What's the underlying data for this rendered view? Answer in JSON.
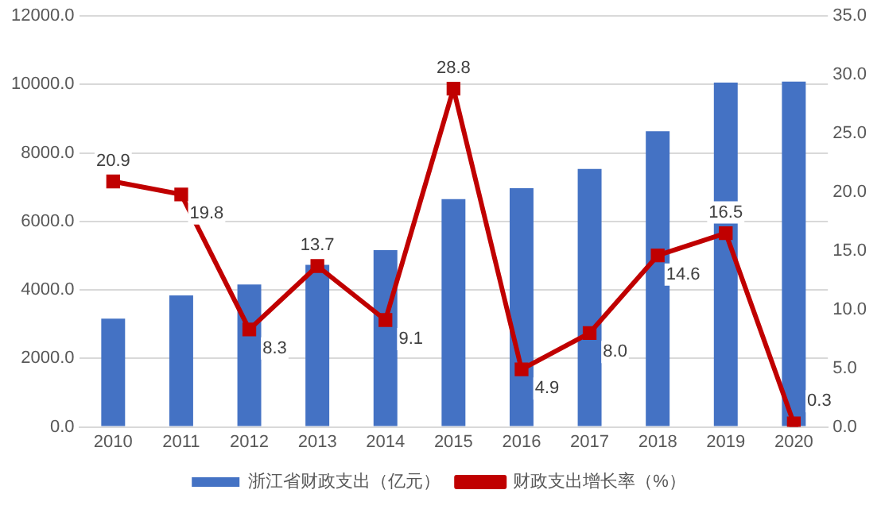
{
  "chart_data": {
    "type": "bar",
    "categories": [
      "2010",
      "2011",
      "2012",
      "2013",
      "2014",
      "2015",
      "2016",
      "2017",
      "2018",
      "2019",
      "2020"
    ],
    "series": [
      {
        "name": "浙江省财政支出（亿元）",
        "color": "#4472c4",
        "values": [
          3160,
          3840,
          4160,
          4730,
          5160,
          6650,
          6970,
          7530,
          8630,
          10050,
          10080
        ]
      },
      {
        "name": "财政支出增长率（%）",
        "type": "line",
        "axis": "y2",
        "color": "#c00000",
        "marker": "square",
        "data_labels": true,
        "values": [
          20.9,
          19.8,
          8.3,
          13.7,
          9.1,
          28.8,
          4.9,
          8.0,
          14.6,
          16.5,
          0.3
        ],
        "value_labels": [
          "20.9",
          "19.8",
          "8.3",
          "13.7",
          "9.1",
          "28.8",
          "4.9",
          "8.0",
          "14.6",
          "16.5",
          "0.3"
        ]
      }
    ],
    "ylim": [
      0,
      12000
    ],
    "yticks": [
      {
        "value": 0,
        "label": "0.0"
      },
      {
        "value": 2000,
        "label": "2000.0"
      },
      {
        "value": 4000,
        "label": "4000.0"
      },
      {
        "value": 6000,
        "label": "6000.0"
      },
      {
        "value": 8000,
        "label": "8000.0"
      },
      {
        "value": 10000,
        "label": "10000.0"
      },
      {
        "value": 12000,
        "label": "12000.0"
      }
    ],
    "y2lim": [
      0,
      35
    ],
    "y2ticks": [
      {
        "value": 0,
        "label": "0.0"
      },
      {
        "value": 5,
        "label": "5.0"
      },
      {
        "value": 10,
        "label": "10.0"
      },
      {
        "value": 15,
        "label": "15.0"
      },
      {
        "value": 20,
        "label": "20.0"
      },
      {
        "value": 25,
        "label": "25.0"
      },
      {
        "value": 30,
        "label": "30.0"
      },
      {
        "value": 35,
        "label": "35.0"
      }
    ],
    "grid": "y",
    "legend": "bottom"
  }
}
